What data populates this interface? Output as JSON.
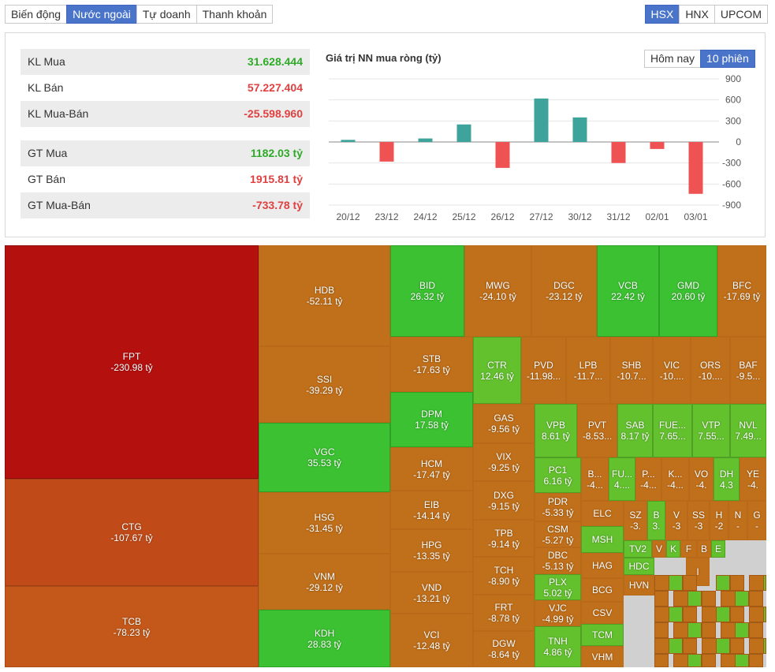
{
  "tabs": [
    {
      "label": "Biến động",
      "active": false
    },
    {
      "label": "Nước ngoài",
      "active": true
    },
    {
      "label": "Tự doanh",
      "active": false
    },
    {
      "label": "Thanh khoản",
      "active": false
    }
  ],
  "exchanges": [
    {
      "label": "HSX",
      "active": true
    },
    {
      "label": "HNX",
      "active": false
    },
    {
      "label": "UPCOM",
      "active": false
    }
  ],
  "stats": {
    "volume": [
      {
        "label": "KL Mua",
        "value": "31.628.444",
        "color": "green"
      },
      {
        "label": "KL Bán",
        "value": "57.227.404",
        "color": "red"
      },
      {
        "label": "KL Mua-Bán",
        "value": "-25.598.960",
        "color": "red"
      }
    ],
    "value": [
      {
        "label": "GT Mua",
        "value": "1182.03 tỷ",
        "color": "green"
      },
      {
        "label": "GT Bán",
        "value": "1915.81 tỷ",
        "color": "red"
      },
      {
        "label": "GT Mua-Bán",
        "value": "-733.78 tỷ",
        "color": "red"
      }
    ]
  },
  "chart_title": "Giá trị NN mua ròng (tỷ)",
  "chart_toggle": [
    {
      "label": "Hôm nay",
      "active": false
    },
    {
      "label": "10 phiên",
      "active": true
    }
  ],
  "chart_data": {
    "type": "bar",
    "title": "Giá trị NN mua ròng (tỷ)",
    "categories": [
      "20/12",
      "23/12",
      "24/12",
      "25/12",
      "26/12",
      "27/12",
      "30/12",
      "31/12",
      "02/01",
      "03/01"
    ],
    "values": [
      30,
      -280,
      50,
      250,
      -370,
      620,
      350,
      -300,
      -100,
      -740
    ],
    "ylim": [
      -900,
      900
    ],
    "yticks": [
      900,
      600,
      300,
      0,
      -300,
      -600,
      -900
    ],
    "colors": {
      "positive": "#3ea39a",
      "negative": "#ee5253"
    }
  },
  "treemap": [
    {
      "t": "FPT",
      "v": "-230.98 tỷ",
      "c": "r"
    },
    {
      "t": "CTG",
      "v": "-107.67 tỷ",
      "c": "ro"
    },
    {
      "t": "TCB",
      "v": "-78.23 tỷ",
      "c": "ro2"
    },
    {
      "t": "HDB",
      "v": "-52.11 tỷ",
      "c": "o"
    },
    {
      "t": "SSI",
      "v": "-39.29 tỷ",
      "c": "o"
    },
    {
      "t": "VGC",
      "v": "35.53 tỷ",
      "c": "g"
    },
    {
      "t": "HSG",
      "v": "-31.45 tỷ",
      "c": "o"
    },
    {
      "t": "VNM",
      "v": "-29.12 tỷ",
      "c": "o"
    },
    {
      "t": "KDH",
      "v": "28.83 tỷ",
      "c": "g"
    },
    {
      "t": "BID",
      "v": "26.32 tỷ",
      "c": "g"
    },
    {
      "t": "MWG",
      "v": "-24.10 tỷ",
      "c": "o"
    },
    {
      "t": "DGC",
      "v": "-23.12 tỷ",
      "c": "o"
    },
    {
      "t": "VCB",
      "v": "22.42 tỷ",
      "c": "g"
    },
    {
      "t": "GMD",
      "v": "20.60 tỷ",
      "c": "g"
    },
    {
      "t": "BFC",
      "v": "-17.69 tỷ",
      "c": "o"
    },
    {
      "t": "STB",
      "v": "-17.63 tỷ",
      "c": "o"
    },
    {
      "t": "DPM",
      "v": "17.58 tỷ",
      "c": "g"
    },
    {
      "t": "HCM",
      "v": "-17.47 tỷ",
      "c": "o"
    },
    {
      "t": "EIB",
      "v": "-14.14 tỷ",
      "c": "o"
    },
    {
      "t": "HPG",
      "v": "-13.35 tỷ",
      "c": "o"
    },
    {
      "t": "VND",
      "v": "-13.21 tỷ",
      "c": "o"
    },
    {
      "t": "VCI",
      "v": "-12.48 tỷ",
      "c": "o"
    },
    {
      "t": "CTR",
      "v": "12.46 tỷ",
      "c": "lg"
    },
    {
      "t": "PVD",
      "v": "-11.98...",
      "c": "o"
    },
    {
      "t": "LPB",
      "v": "-11.7...",
      "c": "o"
    },
    {
      "t": "SHB",
      "v": "-10.7...",
      "c": "o"
    },
    {
      "t": "VIC",
      "v": "-10....",
      "c": "o"
    },
    {
      "t": "ORS",
      "v": "-10....",
      "c": "o"
    },
    {
      "t": "BAF",
      "v": "-9.5...",
      "c": "o"
    },
    {
      "t": "GAS",
      "v": "-9.56 tỷ",
      "c": "o"
    },
    {
      "t": "VIX",
      "v": "-9.25 tỷ",
      "c": "o"
    },
    {
      "t": "DXG",
      "v": "-9.15 tỷ",
      "c": "o"
    },
    {
      "t": "TPB",
      "v": "-9.14 tỷ",
      "c": "o"
    },
    {
      "t": "TCH",
      "v": "-8.90 tỷ",
      "c": "o"
    },
    {
      "t": "FRT",
      "v": "-8.78 tỷ",
      "c": "o"
    },
    {
      "t": "DGW",
      "v": "-8.64 tỷ",
      "c": "o"
    },
    {
      "t": "VPB",
      "v": "8.61 tỷ",
      "c": "lg"
    },
    {
      "t": "PVT",
      "v": "-8.53...",
      "c": "o"
    },
    {
      "t": "SAB",
      "v": "8.17 tỷ",
      "c": "lg"
    },
    {
      "t": "FUE...",
      "v": "7.65...",
      "c": "lg"
    },
    {
      "t": "VTP",
      "v": "7.55...",
      "c": "lg"
    },
    {
      "t": "NVL",
      "v": "7.49...",
      "c": "lg"
    },
    {
      "t": "PC1",
      "v": "6.16 tỷ",
      "c": "lg"
    },
    {
      "t": "PDR",
      "v": "-5.33 tỷ",
      "c": "o"
    },
    {
      "t": "CSM",
      "v": "-5.27 tỷ",
      "c": "o"
    },
    {
      "t": "DBC",
      "v": "-5.13 tỷ",
      "c": "o"
    },
    {
      "t": "PLX",
      "v": "5.02 tỷ",
      "c": "lg"
    },
    {
      "t": "VJC",
      "v": "-4.99 tỷ",
      "c": "o"
    },
    {
      "t": "TNH",
      "v": "4.86 tỷ",
      "c": "lg"
    },
    {
      "t": "B...",
      "v": "-4...",
      "c": "o"
    },
    {
      "t": "FU...",
      "v": "4....",
      "c": "lg"
    },
    {
      "t": "P...",
      "v": "-4...",
      "c": "o"
    },
    {
      "t": "K...",
      "v": "-4...",
      "c": "o"
    },
    {
      "t": "VO",
      "v": "-4.",
      "c": "o"
    },
    {
      "t": "DH",
      "v": "4.3",
      "c": "lg"
    },
    {
      "t": "YE",
      "v": "-4.",
      "c": "o"
    },
    {
      "t": "ELC",
      "v": "",
      "c": "o"
    },
    {
      "t": "SZ",
      "v": "-3.",
      "c": "o"
    },
    {
      "t": "B",
      "v": "3.",
      "c": "lg"
    },
    {
      "t": "V",
      "v": "-3",
      "c": "o"
    },
    {
      "t": "SS",
      "v": "-3",
      "c": "o"
    },
    {
      "t": "H",
      "v": "-2",
      "c": "o"
    },
    {
      "t": "N",
      "v": "-",
      "c": "o"
    },
    {
      "t": "G",
      "v": "-",
      "c": "o"
    },
    {
      "t": "MSH",
      "v": "",
      "c": "lg"
    },
    {
      "t": "TV2",
      "v": "",
      "c": "lg"
    },
    {
      "t": "V",
      "v": "",
      "c": "o"
    },
    {
      "t": "K",
      "v": "",
      "c": "lg"
    },
    {
      "t": "F",
      "v": "",
      "c": "o"
    },
    {
      "t": "B",
      "v": "",
      "c": "o"
    },
    {
      "t": "E",
      "v": "",
      "c": "lg"
    },
    {
      "t": "HAG",
      "v": "",
      "c": "o"
    },
    {
      "t": "HDC",
      "v": "",
      "c": "lg"
    },
    {
      "t": "I",
      "v": "",
      "c": "o"
    },
    {
      "t": "BCG",
      "v": "",
      "c": "o"
    },
    {
      "t": "HVN",
      "v": "",
      "c": "o"
    },
    {
      "t": "CSV",
      "v": "",
      "c": "o"
    },
    {
      "t": "TCM",
      "v": "",
      "c": "lg"
    },
    {
      "t": "VHM",
      "v": "",
      "c": "o"
    }
  ]
}
